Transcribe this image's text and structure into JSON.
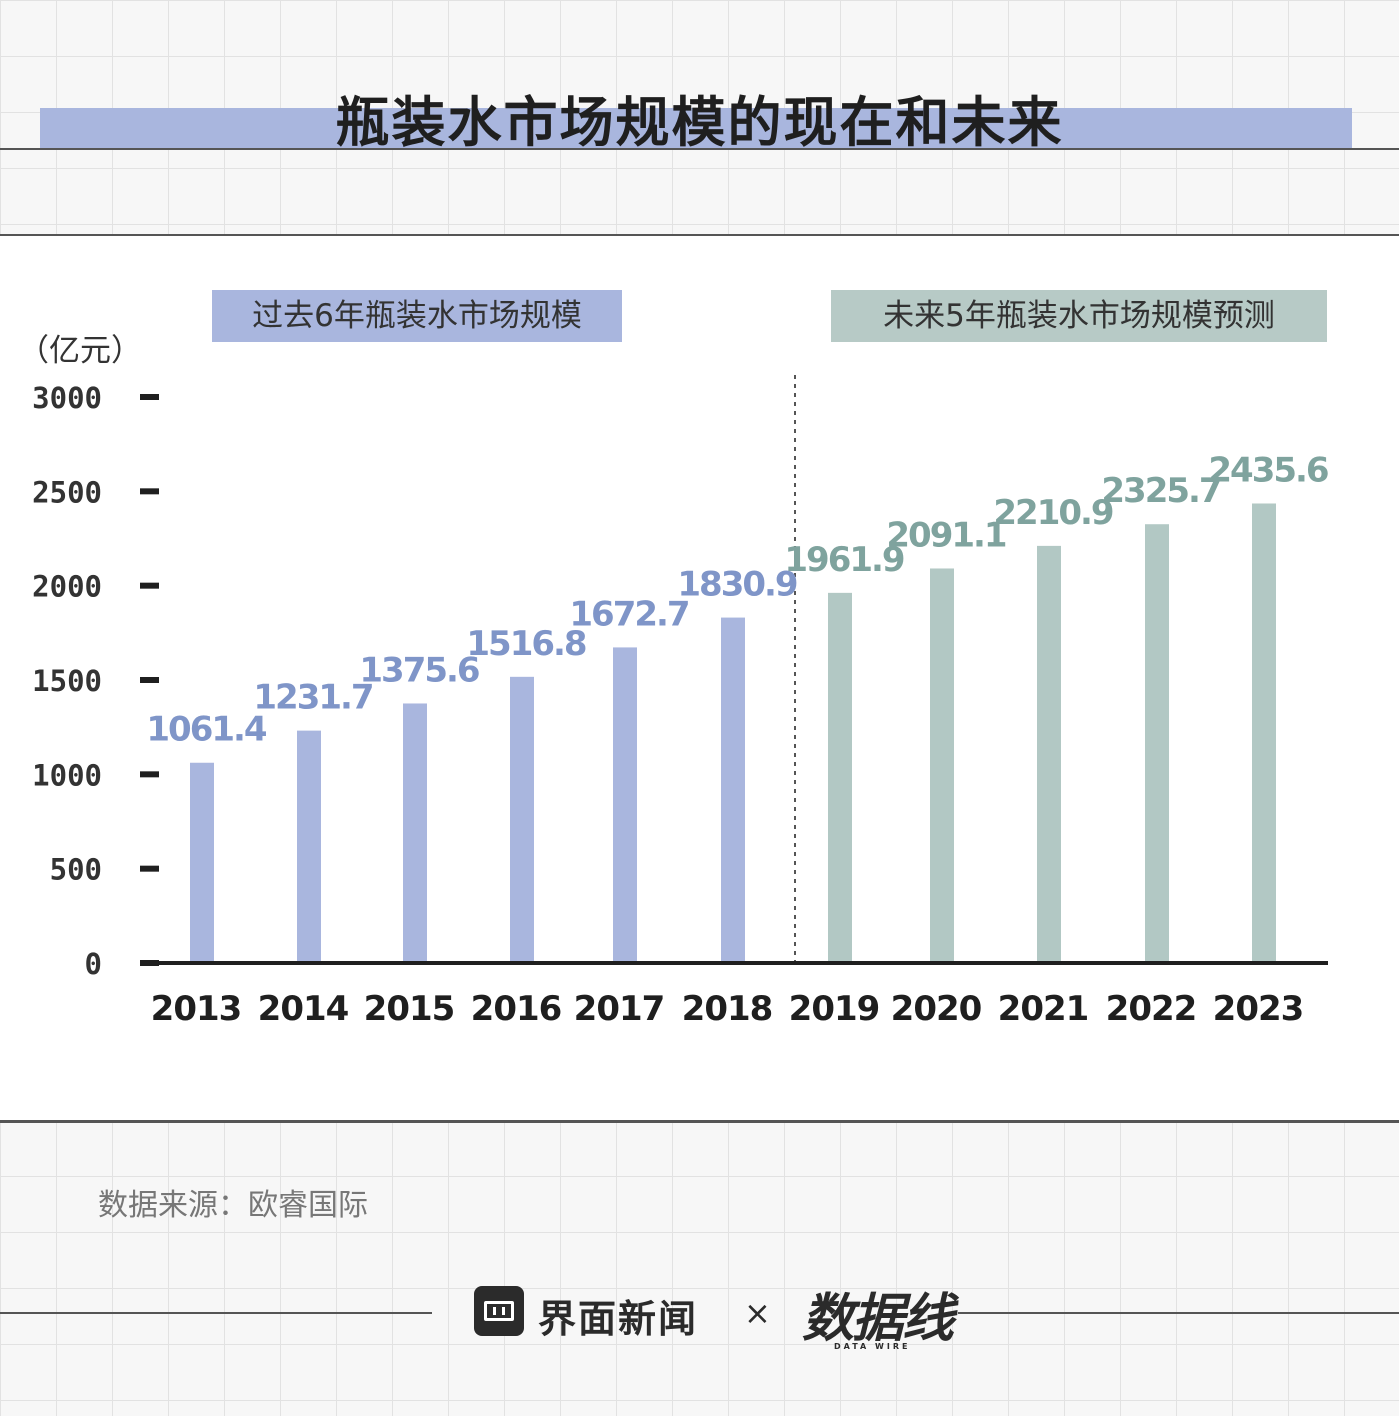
{
  "title": "瓶装水市场规模的现在和未来",
  "sections": {
    "past_label": "过去6年瓶装水市场规模",
    "future_label": "未来5年瓶装水市场规模预测"
  },
  "unit": "（亿元）",
  "source": "数据来源：欧睿国际",
  "footer": {
    "brand": "界面新闻",
    "times": "×",
    "partner": "数据线",
    "partner_sub": "DATA WIRE"
  },
  "colors": {
    "past_bar": "#a9b6de",
    "future_bar": "#b2c8c4",
    "past_value": "#7f95c8",
    "future_value": "#7fa39e",
    "axis": "#1f1f1f"
  },
  "chart_data": {
    "type": "bar",
    "categories": [
      "2013",
      "2014",
      "2015",
      "2016",
      "2017",
      "2018",
      "2019",
      "2020",
      "2021",
      "2022",
      "2023"
    ],
    "values": [
      1061.4,
      1231.7,
      1375.6,
      1516.8,
      1672.7,
      1830.9,
      1961.9,
      2091.1,
      2210.9,
      2325.7,
      2435.6
    ],
    "value_labels": [
      "1061.4",
      "1231.7",
      "1375.6",
      "1516.8",
      "1672.7",
      "1830.9",
      "1961.9",
      "2091.1",
      "2210.9",
      "2325.7",
      "2435.6"
    ],
    "groups": [
      "past",
      "past",
      "past",
      "past",
      "past",
      "past",
      "future",
      "future",
      "future",
      "future",
      "future"
    ],
    "ylim": [
      0,
      3000
    ],
    "yticks": [
      "0",
      "500",
      "1000",
      "1500",
      "2000",
      "2500",
      "3000"
    ],
    "ytick_values": [
      0,
      500,
      1000,
      1500,
      2000,
      2500,
      3000
    ],
    "grid": false,
    "divider_between": [
      "2018",
      "2019"
    ]
  }
}
